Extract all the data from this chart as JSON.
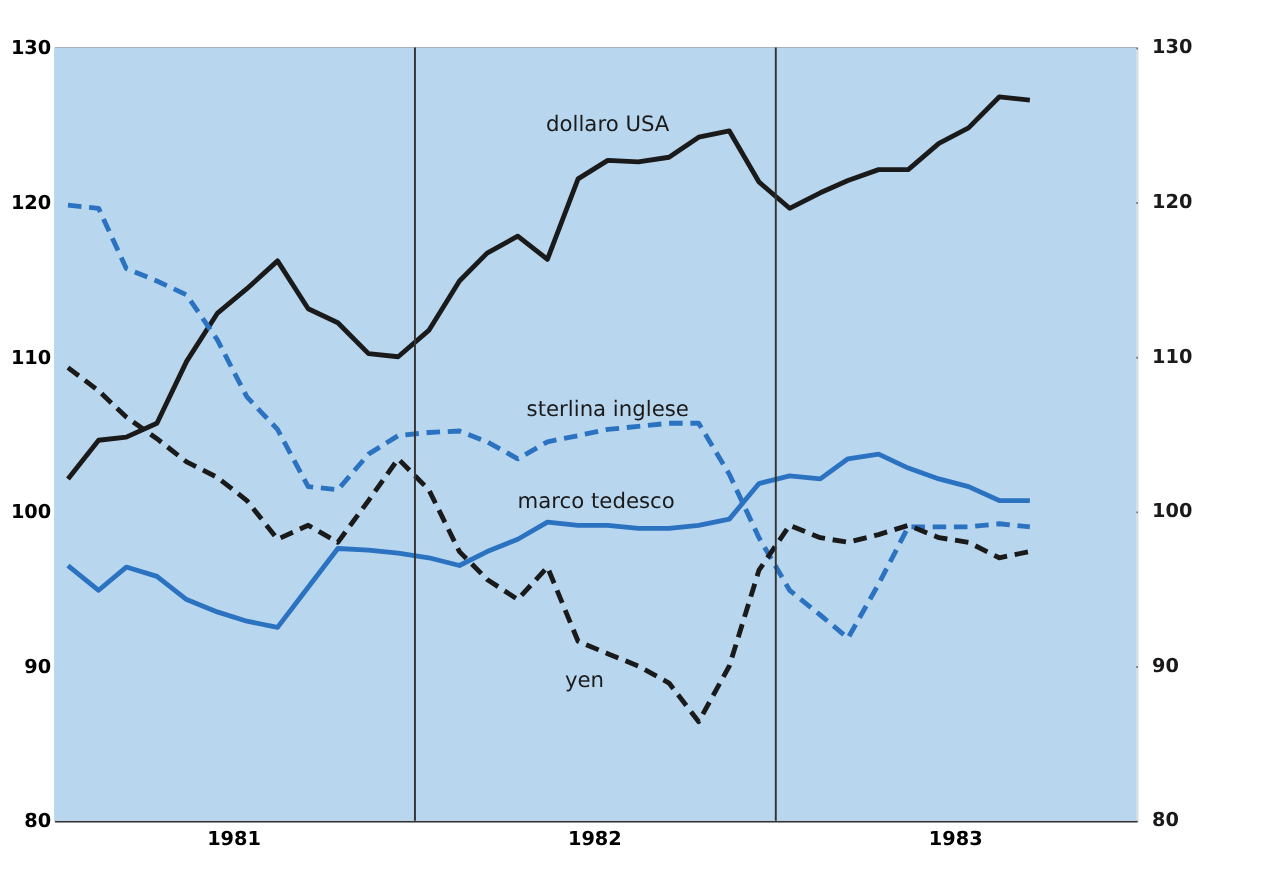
{
  "chart_data": {
    "type": "line",
    "x": [
      "1981-01-15",
      "1981-02-15",
      "1981-03-15",
      "1981-04-15",
      "1981-05-15",
      "1981-06-15",
      "1981-07-15",
      "1981-08-15",
      "1981-09-15",
      "1981-10-15",
      "1981-11-15",
      "1981-12-15",
      "1982-01-15",
      "1982-02-15",
      "1982-03-15",
      "1982-04-15",
      "1982-05-15",
      "1982-06-15",
      "1982-07-15",
      "1982-08-15",
      "1982-09-15",
      "1982-10-15",
      "1982-11-15",
      "1982-12-15",
      "1983-01-15",
      "1983-02-15",
      "1983-03-15",
      "1983-04-15",
      "1983-05-15",
      "1983-06-15",
      "1983-07-15",
      "1983-08-15",
      "1983-09-15"
    ],
    "xlim": [
      "1981-01-01",
      "1984-01-01"
    ],
    "xticks": [
      {
        "value": "1981-07-01",
        "label": "1981"
      },
      {
        "value": "1982-07-01",
        "label": "1982"
      },
      {
        "value": "1983-07-01",
        "label": "1983"
      }
    ],
    "ref_lines": [
      {
        "axis": "x",
        "value": "1982-01-01",
        "label": null
      },
      {
        "axis": "x",
        "value": "1983-01-01",
        "label": null
      }
    ],
    "ylim": [
      80,
      130
    ],
    "yticks": [
      80,
      90,
      100,
      110,
      120,
      130
    ],
    "y2lim": [
      80,
      130
    ],
    "y2ticks": [
      80,
      90,
      100,
      110,
      120,
      130
    ],
    "grid": "y",
    "series": [
      {
        "name": "dollaro USA",
        "color": "#1a1a1a",
        "line_style": "solid",
        "values": [
          102.1,
          104.6,
          104.8,
          105.7,
          109.7,
          112.8,
          114.4,
          116.2,
          113.1,
          112.2,
          110.2,
          110.0,
          111.7,
          114.9,
          116.7,
          117.8,
          116.3,
          121.5,
          122.7,
          122.6,
          122.9,
          124.2,
          124.6,
          121.3,
          119.6,
          120.6,
          121.4,
          122.1,
          122.1,
          123.8,
          124.8,
          126.8,
          126.6
        ]
      },
      {
        "name": "sterlina inglese",
        "color": "#2b72c0",
        "line_style": "dashed",
        "values": [
          119.8,
          119.6,
          115.7,
          114.9,
          114.0,
          111.1,
          107.4,
          105.3,
          101.6,
          101.4,
          103.7,
          104.9,
          105.1,
          105.2,
          104.5,
          103.4,
          104.5,
          104.9,
          105.3,
          105.5,
          105.7,
          105.7,
          102.4,
          98.3,
          94.9,
          93.3,
          91.8,
          95.3,
          99.0,
          99.0,
          99.0,
          99.2,
          99.0
        ]
      },
      {
        "name": "marco tedesco",
        "color": "#2b72c0",
        "line_style": "solid",
        "values": [
          96.5,
          94.9,
          96.4,
          95.8,
          94.3,
          93.5,
          92.9,
          92.5,
          95.1,
          97.6,
          97.5,
          97.3,
          97.0,
          96.5,
          97.4,
          98.2,
          99.3,
          99.1,
          99.1,
          98.9,
          98.9,
          99.1,
          99.5,
          101.8,
          102.3,
          102.1,
          103.4,
          103.7,
          102.8,
          102.1,
          101.6,
          100.7,
          100.7
        ]
      },
      {
        "name": "yen",
        "color": "#1a1a1a",
        "line_style": "dashed",
        "values": [
          109.3,
          107.8,
          106.1,
          104.7,
          103.2,
          102.2,
          100.7,
          98.2,
          99.1,
          98.0,
          100.7,
          103.4,
          101.4,
          97.4,
          95.6,
          94.3,
          96.4,
          91.6,
          90.8,
          90.0,
          88.9,
          86.4,
          90.0,
          96.2,
          99.1,
          98.3,
          98.0,
          98.5,
          99.1,
          98.3,
          98.0,
          97.0,
          97.4
        ]
      }
    ]
  }
}
